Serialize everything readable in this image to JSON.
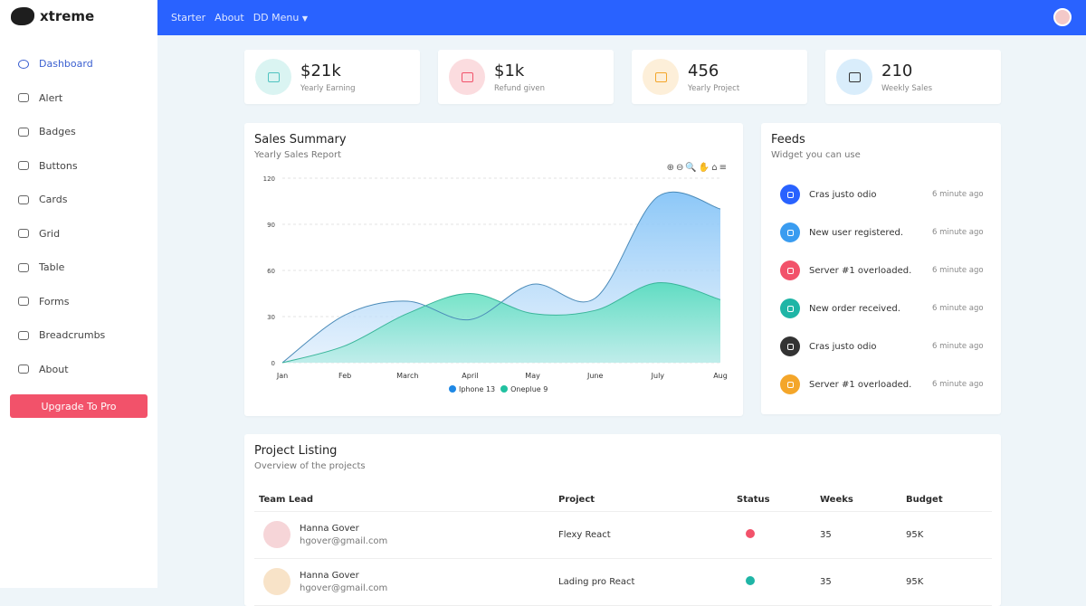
{
  "brand": "xtreme",
  "sidebar": {
    "items": [
      {
        "label": "Dashboard",
        "icon": "speedometer-icon"
      },
      {
        "label": "Alert",
        "icon": "bell-icon"
      },
      {
        "label": "Badges",
        "icon": "patch-check-icon"
      },
      {
        "label": "Buttons",
        "icon": "hdd-stack-icon"
      },
      {
        "label": "Cards",
        "icon": "card-text-icon"
      },
      {
        "label": "Grid",
        "icon": "columns-icon"
      },
      {
        "label": "Table",
        "icon": "layout-split-icon"
      },
      {
        "label": "Forms",
        "icon": "textarea-icon"
      },
      {
        "label": "Breadcrumbs",
        "icon": "link-icon"
      },
      {
        "label": "About",
        "icon": "people-icon"
      }
    ],
    "upgrade": "Upgrade To Pro"
  },
  "topbar": {
    "links": [
      "Starter",
      "About",
      "DD Menu"
    ],
    "accent": "#2962ff"
  },
  "stats": [
    {
      "value": "$21k",
      "label": "Yearly Earning",
      "color": "#4fc3c0",
      "bg": "#daf4f2"
    },
    {
      "value": "$1k",
      "label": "Refund given",
      "color": "#f2526a",
      "bg": "#fbdcdf"
    },
    {
      "value": "456",
      "label": "Yearly Project",
      "color": "#f4a62a",
      "bg": "#fdefd9"
    },
    {
      "value": "210",
      "label": "Weekly Sales",
      "color": "#333333",
      "bg": "#d9edfb"
    }
  ],
  "sales": {
    "title": "Sales Summary",
    "subtitle": "Yearly Sales Report",
    "toolbar": "⊕⊖🔍✋⌂≡"
  },
  "chart_data": {
    "type": "area",
    "categories": [
      "Jan",
      "Feb",
      "March",
      "April",
      "May",
      "June",
      "July",
      "Aug"
    ],
    "ylim": [
      0,
      120
    ],
    "yticks": [
      0,
      30,
      60,
      90,
      120
    ],
    "grid": true,
    "legend": "bottom",
    "series": [
      {
        "name": "Iphone 13",
        "values": [
          0,
          31,
          40,
          28,
          51,
          42,
          108,
          100
        ],
        "color": "#1e88e5"
      },
      {
        "name": "Oneplue 9",
        "values": [
          0,
          11,
          32,
          45,
          32,
          34,
          52,
          41
        ],
        "color": "#21c1a0"
      }
    ]
  },
  "feeds": {
    "title": "Feeds",
    "subtitle": "Widget you can use",
    "items": [
      {
        "text": "Cras justo odio",
        "time": "6 minute ago",
        "color": "#2962ff",
        "icon": "bell-icon"
      },
      {
        "text": "New user registered.",
        "time": "6 minute ago",
        "color": "#3a9cf0",
        "icon": "person-icon"
      },
      {
        "text": "Server #1 overloaded.",
        "time": "6 minute ago",
        "color": "#f2526a",
        "icon": "hdd-icon"
      },
      {
        "text": "New order received.",
        "time": "6 minute ago",
        "color": "#1fb5a6",
        "icon": "bag-check-icon"
      },
      {
        "text": "Cras justo odio",
        "time": "6 minute ago",
        "color": "#333333",
        "icon": "bell-icon"
      },
      {
        "text": "Server #1 overloaded.",
        "time": "6 minute ago",
        "color": "#f4a62a",
        "icon": "hdd-icon"
      }
    ]
  },
  "projects": {
    "title": "Project Listing",
    "subtitle": "Overview of the projects",
    "headers": [
      "Team Lead",
      "Project",
      "Status",
      "Weeks",
      "Budget"
    ],
    "rows": [
      {
        "name": "Hanna Gover",
        "email": "hgover@gmail.com",
        "project": "Flexy React",
        "status_color": "#f2526a",
        "weeks": "35",
        "budget": "95K"
      },
      {
        "name": "Hanna Gover",
        "email": "hgover@gmail.com",
        "project": "Lading pro React",
        "status_color": "#1fb5a6",
        "weeks": "35",
        "budget": "95K"
      }
    ]
  }
}
